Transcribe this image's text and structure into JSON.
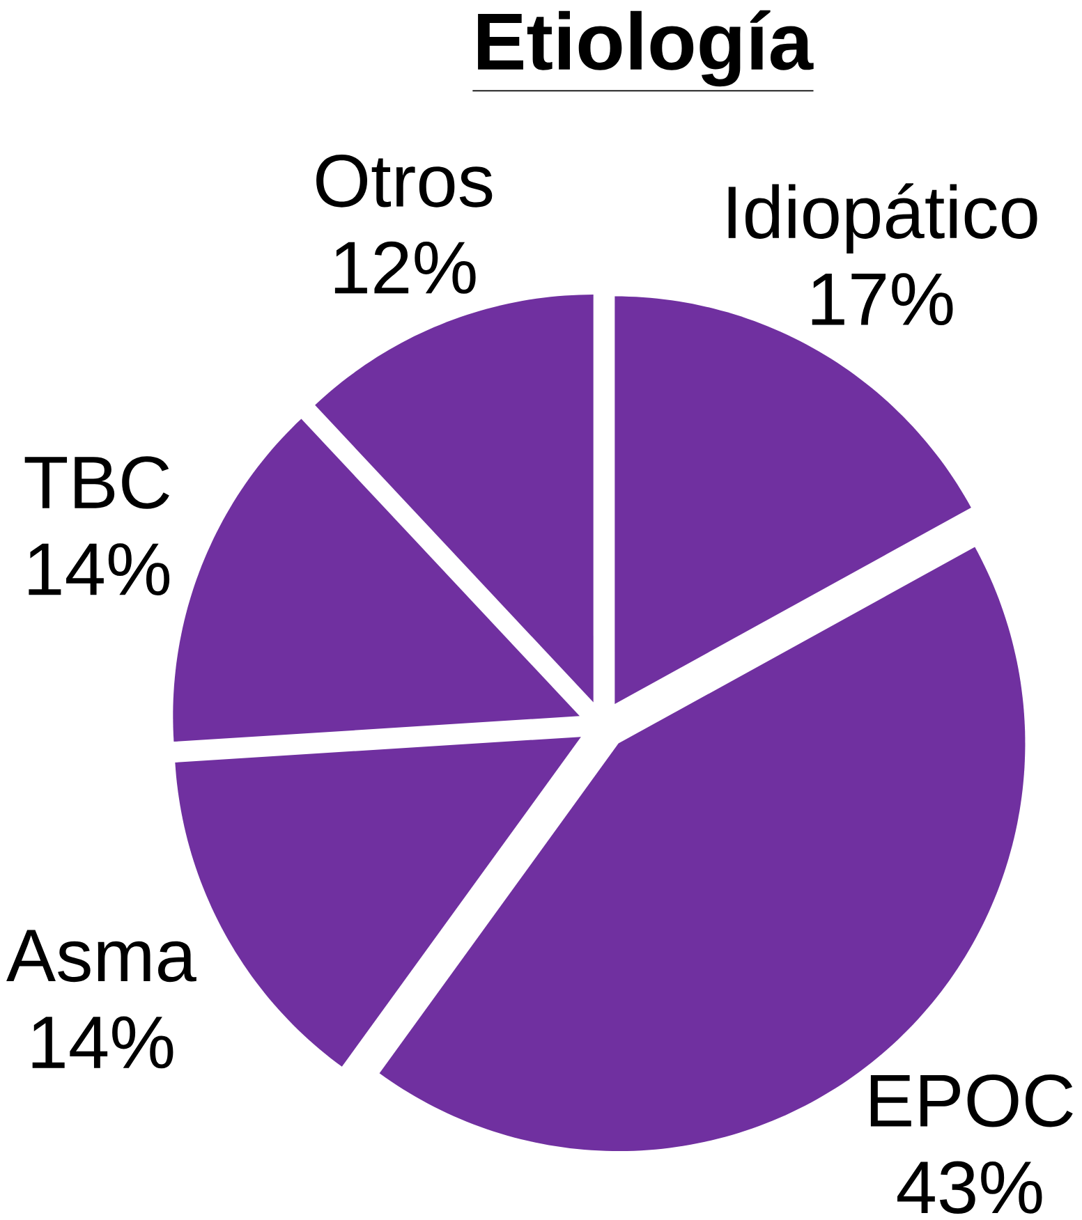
{
  "chart_data": {
    "type": "pie",
    "title": "**Etiología**",
    "categories": [
      "Idiopático",
      "EPOC",
      "Asma",
      "TBC",
      "Otros"
    ],
    "values": [
      17,
      43,
      14,
      14,
      12
    ],
    "value_labels": [
      "17%",
      "43%",
      "14%",
      "14%",
      "12%"
    ],
    "colors": [
      "#7030a0",
      "#7030a0",
      "#7030a0",
      "#7030a0",
      "#7030a0"
    ]
  }
}
